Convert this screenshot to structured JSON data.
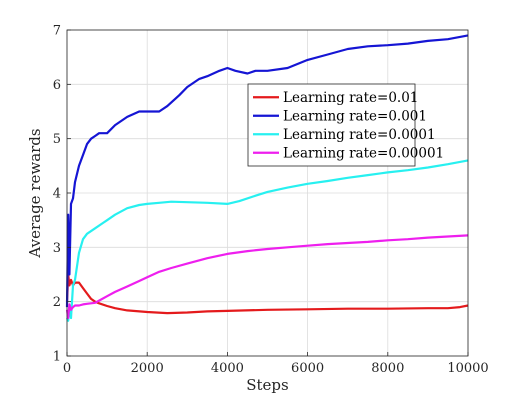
{
  "chart_data": {
    "type": "line",
    "title": "",
    "xlabel": "Steps",
    "ylabel": "Average rewards",
    "xlim": [
      0,
      10000
    ],
    "ylim": [
      1,
      7
    ],
    "xticks": [
      0,
      2000,
      4000,
      6000,
      8000,
      10000
    ],
    "yticks": [
      1,
      2,
      3,
      4,
      5,
      6,
      7
    ],
    "x_tick_labels": [
      "0",
      "2000",
      "4000",
      "6000",
      "8000",
      "10000"
    ],
    "y_tick_labels": [
      "1",
      "2",
      "3",
      "4",
      "5",
      "6",
      "7"
    ],
    "grid": true,
    "legend_position": "top-right",
    "series": [
      {
        "name": "Learning rate=0.01",
        "color": "#e41a1c",
        "x": [
          0,
          30,
          60,
          100,
          150,
          200,
          300,
          400,
          500,
          600,
          700,
          800,
          1000,
          1200,
          1500,
          2000,
          2500,
          3000,
          3500,
          4000,
          5000,
          6000,
          7000,
          8000,
          9000,
          9500,
          9800,
          10000
        ],
        "y": [
          2.0,
          2.5,
          2.3,
          2.4,
          2.3,
          2.35,
          2.35,
          2.25,
          2.15,
          2.05,
          2.0,
          1.97,
          1.92,
          1.88,
          1.84,
          1.81,
          1.79,
          1.8,
          1.82,
          1.83,
          1.85,
          1.86,
          1.87,
          1.87,
          1.88,
          1.88,
          1.9,
          1.93
        ]
      },
      {
        "name": "Learning rate=0.001",
        "color": "#1515d4",
        "x": [
          0,
          30,
          60,
          100,
          150,
          200,
          300,
          400,
          500,
          600,
          700,
          800,
          1000,
          1200,
          1500,
          1800,
          2000,
          2300,
          2500,
          2800,
          3000,
          3300,
          3500,
          3800,
          4000,
          4200,
          4500,
          4700,
          5000,
          5500,
          6000,
          6500,
          7000,
          7500,
          8000,
          8500,
          9000,
          9500,
          10000
        ],
        "y": [
          1.9,
          3.6,
          2.5,
          3.8,
          3.9,
          4.2,
          4.5,
          4.7,
          4.9,
          5.0,
          5.05,
          5.1,
          5.1,
          5.25,
          5.4,
          5.5,
          5.5,
          5.5,
          5.6,
          5.8,
          5.95,
          6.1,
          6.15,
          6.25,
          6.3,
          6.25,
          6.2,
          6.25,
          6.25,
          6.3,
          6.45,
          6.55,
          6.65,
          6.7,
          6.72,
          6.75,
          6.8,
          6.83,
          6.9
        ]
      },
      {
        "name": "Learning rate=0.0001",
        "color": "#27f0f0",
        "x": [
          0,
          30,
          60,
          100,
          150,
          200,
          300,
          400,
          500,
          700,
          900,
          1000,
          1200,
          1500,
          1800,
          2000,
          2300,
          2600,
          3000,
          3500,
          4000,
          4300,
          4700,
          5000,
          5500,
          6000,
          6500,
          7000,
          7500,
          8000,
          8500,
          9000,
          9500,
          10000
        ],
        "y": [
          1.7,
          1.65,
          1.9,
          1.7,
          2.3,
          2.4,
          2.9,
          3.15,
          3.25,
          3.35,
          3.45,
          3.5,
          3.6,
          3.72,
          3.78,
          3.8,
          3.82,
          3.84,
          3.83,
          3.82,
          3.8,
          3.85,
          3.95,
          4.02,
          4.1,
          4.17,
          4.22,
          4.28,
          4.33,
          4.38,
          4.42,
          4.47,
          4.53,
          4.6
        ]
      },
      {
        "name": "Learning rate=0.00001",
        "color": "#ee1fee",
        "x": [
          0,
          30,
          60,
          100,
          150,
          200,
          300,
          400,
          500,
          600,
          700,
          800,
          1000,
          1200,
          1500,
          1800,
          2000,
          2300,
          2600,
          3000,
          3500,
          4000,
          4500,
          5000,
          5500,
          6000,
          6500,
          7000,
          7500,
          8000,
          8500,
          9000,
          9500,
          10000
        ],
        "y": [
          1.85,
          1.7,
          1.95,
          1.85,
          1.9,
          1.93,
          1.93,
          1.95,
          1.96,
          1.97,
          1.98,
          2.02,
          2.1,
          2.18,
          2.28,
          2.38,
          2.45,
          2.55,
          2.62,
          2.7,
          2.8,
          2.88,
          2.93,
          2.97,
          3.0,
          3.03,
          3.06,
          3.08,
          3.1,
          3.13,
          3.15,
          3.18,
          3.2,
          3.22
        ]
      }
    ]
  }
}
